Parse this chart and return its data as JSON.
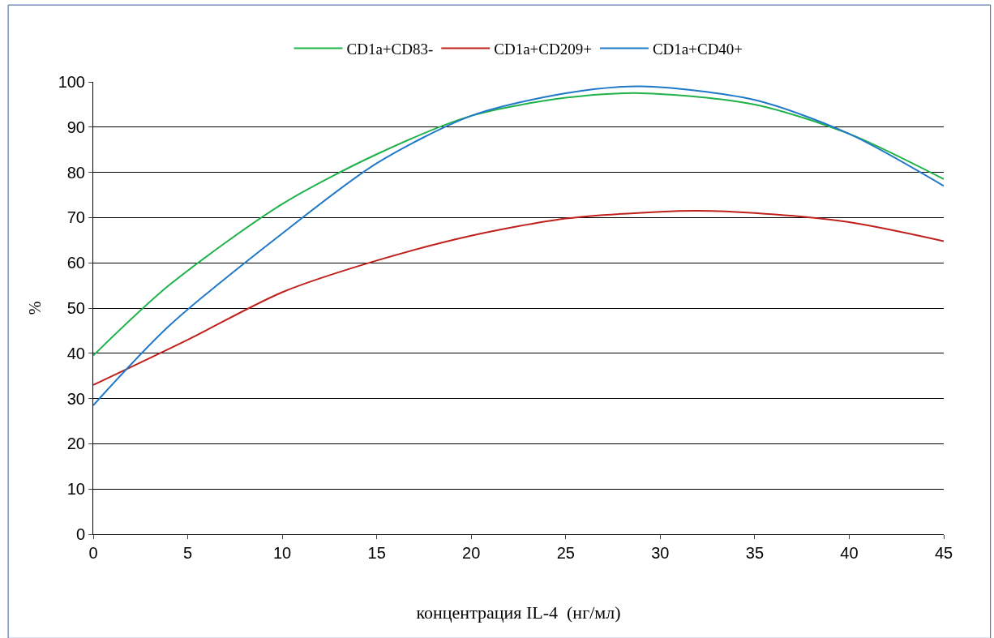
{
  "chart_data": {
    "type": "line",
    "xlabel": "концентрация IL-4  (нг/мл)",
    "ylabel": "%",
    "xlim": [
      0,
      45
    ],
    "xticks": [
      0,
      5,
      10,
      15,
      20,
      25,
      30,
      35,
      40,
      45
    ],
    "ylim": [
      0,
      100
    ],
    "yticks": [
      0,
      10,
      20,
      30,
      40,
      50,
      60,
      70,
      80,
      90,
      100
    ],
    "grid": "y",
    "legend": "top",
    "marker": "none",
    "line_style": "solid",
    "series": [
      {
        "name": "CD1a+CD83-",
        "color": "#1fb24a",
        "x": [
          0,
          4,
          10,
          15,
          20,
          25,
          29,
          35,
          40,
          45
        ],
        "values": [
          39.5,
          55,
          73,
          84,
          92.5,
          96.5,
          97.5,
          95,
          88.5,
          78.5
        ]
      },
      {
        "name": "CD1a+CD209+",
        "color": "#c0201c",
        "x": [
          0,
          5,
          10,
          15,
          20,
          25,
          30,
          32,
          35,
          40,
          45
        ],
        "values": [
          33,
          43,
          53.5,
          60.5,
          66,
          69.8,
          71.3,
          71.5,
          71,
          69,
          64.8
        ]
      },
      {
        "name": "CD1a+CD40+",
        "color": "#1f78c8",
        "x": [
          0,
          4,
          10,
          15,
          20,
          25,
          29,
          35,
          40,
          45
        ],
        "values": [
          28.5,
          46,
          66.5,
          82,
          92.5,
          97.5,
          99,
          96,
          88.5,
          77
        ]
      }
    ]
  }
}
